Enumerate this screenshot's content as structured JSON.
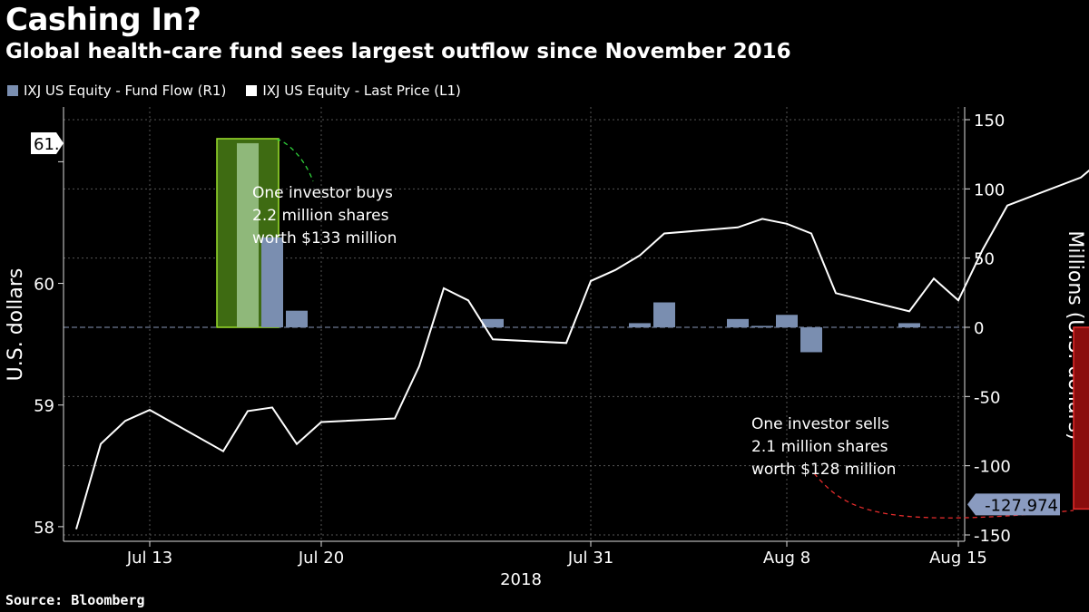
{
  "title": "Cashing In?",
  "subtitle": "Global health-care fund sees largest outflow since November 2016",
  "legend": [
    {
      "label": "IXJ US Equity - Fund Flow (R1)",
      "color": "#7a8eb0"
    },
    {
      "label": "IXJ US Equity - Last Price (L1)",
      "color": "#ffffff"
    }
  ],
  "source": "Source: Bloomberg",
  "chart_data": {
    "type": "bar+line",
    "title": "Cashing In?",
    "subtitle": "Global health-care fund sees largest outflow since November 2016",
    "left_axis": {
      "label": "U.S. dollars",
      "ticks": [
        58,
        59,
        60,
        61
      ],
      "range": [
        57.88,
        61.45
      ]
    },
    "right_axis": {
      "label": "Millions (U.S. dollars)",
      "ticks": [
        150,
        100,
        50,
        0,
        -50,
        -100,
        -150
      ],
      "range": [
        -150,
        150
      ]
    },
    "x_ticks": [
      "Jul 13",
      "Jul 20",
      "Jul 31",
      "Aug 8",
      "Aug 15"
    ],
    "x_year": "2018",
    "price_series": {
      "name": "IXJ US Equity - Last Price (L1)",
      "points": [
        [
          "Jul 10",
          57.98
        ],
        [
          "Jul 11",
          58.68
        ],
        [
          "Jul 12",
          58.87
        ],
        [
          "Jul 13",
          58.96
        ],
        [
          "Jul 16",
          58.62
        ],
        [
          "Jul 17",
          58.95
        ],
        [
          "Jul 18",
          58.98
        ],
        [
          "Jul 19",
          58.68
        ],
        [
          "Jul 20",
          58.86
        ],
        [
          "Jul 23",
          58.89
        ],
        [
          "Jul 24",
          59.32
        ],
        [
          "Jul 25",
          59.96
        ],
        [
          "Jul 26",
          59.86
        ],
        [
          "Jul 27",
          59.54
        ],
        [
          "Jul 30",
          59.51
        ],
        [
          "Jul 31",
          60.02
        ],
        [
          "Aug 1",
          60.11
        ],
        [
          "Aug 2",
          60.23
        ],
        [
          "Aug 3",
          60.41
        ],
        [
          "Aug 6",
          60.46
        ],
        [
          "Aug 7",
          60.53
        ],
        [
          "Aug 8",
          60.49
        ],
        [
          "Aug 9",
          60.41
        ],
        [
          "Aug 10",
          59.92
        ],
        [
          "Aug 13",
          59.77
        ],
        [
          "Aug 14",
          60.04
        ],
        [
          "Aug 15",
          59.86
        ],
        [
          "Aug 16",
          60.28
        ],
        [
          "Aug 17",
          60.64
        ],
        [
          "Aug 20",
          60.87
        ],
        [
          "Aug 21",
          61.04
        ]
      ]
    },
    "flow_series": {
      "name": "IXJ US Equity - Fund Flow (R1)",
      "points": [
        [
          "Jul 17",
          133
        ],
        [
          "Jul 18",
          65
        ],
        [
          "Jul 19",
          12
        ],
        [
          "Jul 27",
          6
        ],
        [
          "Aug 2",
          3
        ],
        [
          "Aug 3",
          18
        ],
        [
          "Aug 6",
          6
        ],
        [
          "Aug 7",
          1
        ],
        [
          "Aug 8",
          9
        ],
        [
          "Aug 9",
          -18
        ],
        [
          "Aug 13",
          3
        ],
        [
          "Aug 21",
          -127.974
        ]
      ]
    },
    "last_price_tag": "61.",
    "last_flow_tag": "-127.974",
    "annotations": [
      {
        "lines": [
          "One investor buys",
          "2.2 million shares",
          "worth $133 million"
        ],
        "color": "#8ec63f"
      },
      {
        "lines": [
          "One investor sells",
          "2.1 million shares",
          "worth $128 million"
        ],
        "color": "#cc2222"
      }
    ],
    "grid": true
  }
}
